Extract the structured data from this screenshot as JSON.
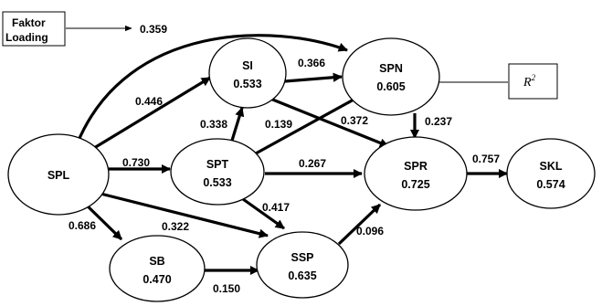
{
  "legend": {
    "loading_line1": "Faktor",
    "loading_line2": "Loading",
    "loading_value": "0.359",
    "r2_symbol": "R",
    "r2_superscript": "2"
  },
  "nodes": {
    "spl": {
      "name": "SPL",
      "r2": ""
    },
    "si": {
      "name": "SI",
      "r2": "0.533"
    },
    "spn": {
      "name": "SPN",
      "r2": "0.605"
    },
    "spt": {
      "name": "SPT",
      "r2": "0.533"
    },
    "spr": {
      "name": "SPR",
      "r2": "0.725"
    },
    "skl": {
      "name": "SKL",
      "r2": "0.574"
    },
    "sb": {
      "name": "SB",
      "r2": "0.470"
    },
    "ssp": {
      "name": "SSP",
      "r2": "0.635"
    }
  },
  "paths": {
    "spl_si": "0.446",
    "spl_spt": "0.730",
    "spl_sb": "0.686",
    "spl_ssp": "0.322",
    "spt_si": "0.338",
    "spt_spn": "0.139",
    "si_spn": "0.366",
    "si_spr": "0.372",
    "spn_spr": "0.237",
    "spt_spr": "0.267",
    "spt_ssp": "0.417",
    "sb_ssp": "0.150",
    "ssp_spr": "0.096",
    "spr_skl": "0.757"
  }
}
